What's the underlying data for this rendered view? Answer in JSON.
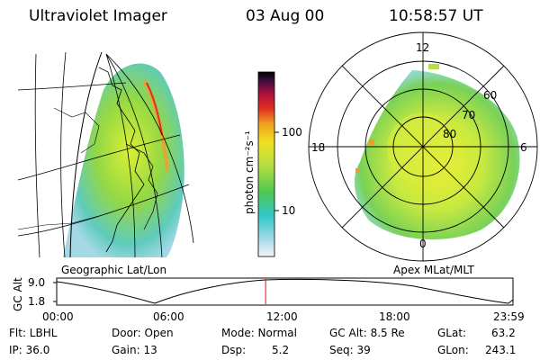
{
  "header": {
    "instrument": "Ultraviolet Imager",
    "date": "03 Aug 00",
    "time": "10:58:57 UT"
  },
  "left_panel": {
    "caption": "Geographic Lat/Lon"
  },
  "colorbar": {
    "label": "photon cm⁻²s⁻¹",
    "ticks": [
      "100",
      "10"
    ],
    "scale": "log"
  },
  "polar_panel": {
    "caption": "Apex MLat/MLT",
    "mlt_labels": [
      "12",
      "18",
      "6",
      "0"
    ],
    "lat_labels": [
      "60",
      "70",
      "80"
    ]
  },
  "orbit_plot": {
    "ylabel": "GC Alt",
    "yticks": [
      "9.0",
      "1.8"
    ],
    "xticks": [
      "00:00",
      "06:00",
      "12:00",
      "18:00",
      "23:59"
    ],
    "current_marker_hours": 10.98,
    "marker_color": "#ff0000"
  },
  "info": {
    "flt": "Flt: LBHL",
    "ip": "IP: 36.0",
    "door": "Door: Open",
    "gain": "Gain: 13",
    "mode": "Mode: Normal",
    "dsp_label": "Dsp:",
    "dsp_value": "5.2",
    "gcalt": "GC Alt: 8.5 Re",
    "seq": "Seq: 39",
    "glat": "GLat:",
    "glat_value": "63.2",
    "glon": "GLon:",
    "glon_value": "243.1"
  }
}
